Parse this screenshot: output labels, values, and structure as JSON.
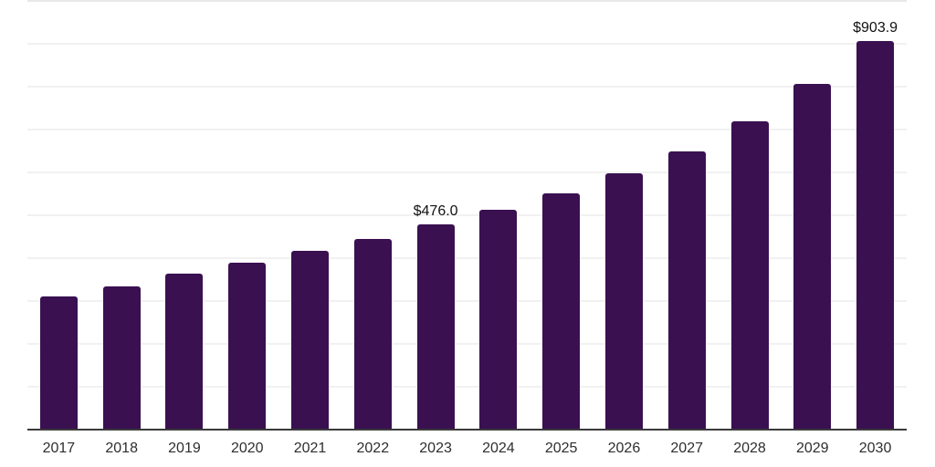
{
  "chart_data": {
    "type": "bar",
    "title": "",
    "xlabel": "",
    "ylabel": "",
    "categories": [
      "2017",
      "2018",
      "2019",
      "2020",
      "2021",
      "2022",
      "2023",
      "2024",
      "2025",
      "2026",
      "2027",
      "2028",
      "2029",
      "2030"
    ],
    "values": [
      309,
      332,
      362,
      387,
      415,
      443,
      476.0,
      511,
      549,
      596,
      647,
      717,
      804,
      903.9
    ],
    "labeled_points": [
      {
        "category": "2023",
        "label": "$476.0"
      },
      {
        "category": "2030",
        "label": "$903.9"
      }
    ],
    "ylim": [
      0,
      1000
    ],
    "gridline_interval": 100,
    "grid": "horizontal",
    "legend_position": "none",
    "bar_color": "#3a1051",
    "axis_line_color": "#3a3a3a",
    "gridline_color": "#f1f1f1",
    "top_gridline_color": "#e8e8e8",
    "value_label_color": "#111111",
    "tick_label_color": "#2e2e2e"
  }
}
